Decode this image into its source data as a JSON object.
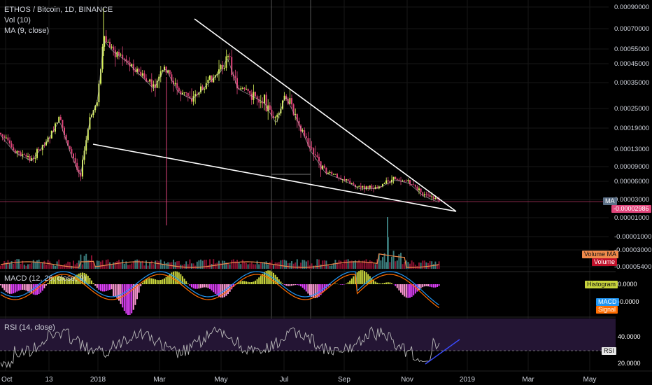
{
  "header": {
    "symbol_line": "ETHOS / Bitcoin, 1D, BINANCE",
    "vol_line": "Vol (10)",
    "ma_line": "MA (9, close)"
  },
  "price_axis": {
    "ticks": [
      "0.00090000",
      "0.00070000",
      "0.00055000",
      "0.00045000",
      "0.00035000",
      "0.00025000",
      "0.00019000",
      "0.00013000",
      "0.00009000",
      "0.00006000",
      "0.00003000",
      "0.00001000",
      "-0.00001000",
      "-0.00003000",
      "-0.00005400"
    ],
    "ma_tag": "MA",
    "last_price_tag": "-0.00002986"
  },
  "volume_panel": {
    "tag_ma": "Volume MA",
    "tag_vol": "Volume"
  },
  "macd_panel": {
    "title": "MACD (12, 26, close, 9)",
    "tick_zero": "0.0000",
    "tick_neg": "-0.0000",
    "tag_hist": "Histogram",
    "tag_macd": "MACD",
    "tag_signal": "Signal"
  },
  "rsi_panel": {
    "title": "RSI (14, close)",
    "tick_40": "40.0000",
    "tick_20": "20.0000",
    "tag_rsi": "RSI"
  },
  "time_axis": [
    "Oct",
    "13",
    "2018",
    "Mar",
    "May",
    "Jul",
    "Sep",
    "Nov",
    "2019",
    "Mar",
    "May"
  ],
  "colors": {
    "background": "#000000",
    "bull_candle": "#d6f05a",
    "bear_candle": "#e0457b",
    "trendline": "#ffffff",
    "volume_ma": "#f08a4b",
    "macd_line": "#2196f3",
    "signal_line": "#ff6d00",
    "hist_positive": "#c8d43c",
    "hist_negative": "#e040fb",
    "rsi_line": "#b0b0b0",
    "rsi_band": "#2a1a3a"
  },
  "chart_data": {
    "type": "candlestick",
    "title": "ETHOS / Bitcoin, 1D, BINANCE",
    "x_range": [
      "2017-10-01",
      "2019-05-15"
    ],
    "price_series_approx": [
      {
        "date": "2017-10-01",
        "close": 0.000125
      },
      {
        "date": "2017-10-13",
        "close": 0.000115
      },
      {
        "date": "2017-11-01",
        "close": 0.00017
      },
      {
        "date": "2017-12-01",
        "close": 0.000105
      },
      {
        "date": "2017-12-20",
        "close": 0.00018
      },
      {
        "date": "2018-01-05",
        "close": 0.00068
      },
      {
        "date": "2018-02-01",
        "close": 0.00045
      },
      {
        "date": "2018-03-01",
        "close": 0.00032
      },
      {
        "date": "2018-04-01",
        "close": 0.0003
      },
      {
        "date": "2018-05-01",
        "close": 0.0005
      },
      {
        "date": "2018-06-01",
        "close": 0.00029
      },
      {
        "date": "2018-07-01",
        "close": 0.0003
      },
      {
        "date": "2018-08-01",
        "close": 9.5e-05
      },
      {
        "date": "2018-09-01",
        "close": 6e-05
      },
      {
        "date": "2018-10-01",
        "close": 6.3e-05
      },
      {
        "date": "2018-11-01",
        "close": 4.5e-05
      },
      {
        "date": "2018-11-28",
        "close": 3e-05
      }
    ],
    "indicators": [
      "Vol (10)",
      "MA (9, close)",
      "MACD (12, 26, close, 9)",
      "RSI (14, close)"
    ],
    "drawings": [
      "descending wedge: upper trendline from early Nov 2017 to mid Dec 2018",
      "lower trendline from Dec 2017 to mid Dec 2018",
      "RSI rising trendline"
    ]
  }
}
